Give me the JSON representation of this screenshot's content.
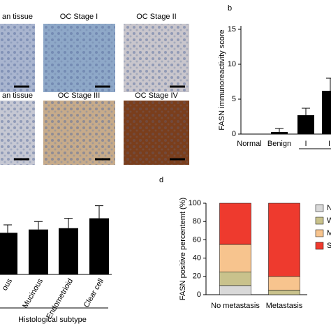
{
  "panel_a": {
    "image_labels": [
      "an tissue",
      "OC Stage I",
      "OC Stage II",
      "an tissue",
      "OC Stage III",
      "OC Stage IV"
    ]
  },
  "chart_data": [
    {
      "type": "bar",
      "panel": "b",
      "ylabel": "FASN immunoreactivity score",
      "categories": [
        "Normal",
        "Benign",
        "I",
        "II"
      ],
      "values": [
        0,
        0.3,
        2.7,
        6.2
      ],
      "errors": [
        0,
        0.5,
        1.0,
        1.8
      ],
      "color": "#000000",
      "ylim": [
        0,
        15.5
      ],
      "yticks": [
        0,
        5,
        10,
        15
      ]
    },
    {
      "type": "bar",
      "xlabel": "Histological subtype",
      "categories": [
        "ous",
        "Mucinous",
        "Endometrioid",
        "Clear cell"
      ],
      "values": [
        6.3,
        6.8,
        7.0,
        8.5
      ],
      "errors": [
        1.2,
        1.2,
        1.5,
        1.9
      ],
      "color": "#000000",
      "ylim": [
        0,
        13
      ]
    },
    {
      "type": "stacked_bar",
      "panel": "d",
      "ylabel": "FASN positive percentemt (%)",
      "categories": [
        "No metastasis",
        "Metastasis"
      ],
      "series": [
        {
          "name": "N",
          "color": "#d9d9d9",
          "values": [
            10,
            0
          ]
        },
        {
          "name": "W",
          "color": "#c9c28c",
          "values": [
            15,
            5
          ]
        },
        {
          "name": "M",
          "color": "#f7c48e",
          "values": [
            30,
            15
          ]
        },
        {
          "name": "S",
          "color": "#ee3a2e",
          "values": [
            45,
            80
          ]
        }
      ],
      "ylim": [
        0,
        100
      ],
      "yticks": [
        0,
        20,
        40,
        60,
        80,
        100
      ]
    }
  ]
}
